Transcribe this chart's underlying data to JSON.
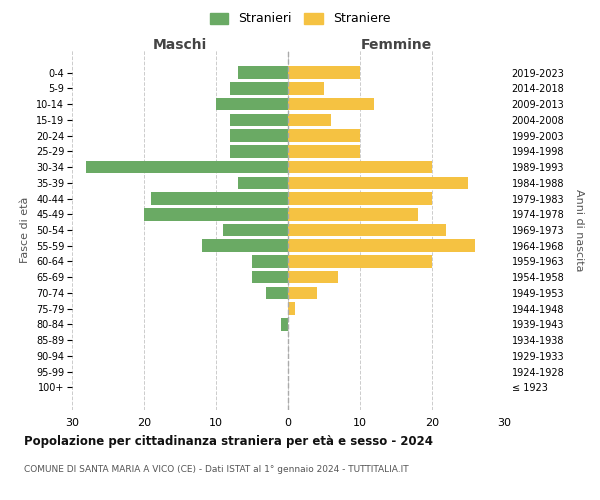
{
  "age_groups": [
    "100+",
    "95-99",
    "90-94",
    "85-89",
    "80-84",
    "75-79",
    "70-74",
    "65-69",
    "60-64",
    "55-59",
    "50-54",
    "45-49",
    "40-44",
    "35-39",
    "30-34",
    "25-29",
    "20-24",
    "15-19",
    "10-14",
    "5-9",
    "0-4"
  ],
  "birth_years": [
    "≤ 1923",
    "1924-1928",
    "1929-1933",
    "1934-1938",
    "1939-1943",
    "1944-1948",
    "1949-1953",
    "1954-1958",
    "1959-1963",
    "1964-1968",
    "1969-1973",
    "1974-1978",
    "1979-1983",
    "1984-1988",
    "1989-1993",
    "1994-1998",
    "1999-2003",
    "2004-2008",
    "2009-2013",
    "2014-2018",
    "2019-2023"
  ],
  "males": [
    0,
    0,
    0,
    0,
    1,
    0,
    3,
    5,
    5,
    12,
    9,
    20,
    19,
    7,
    28,
    8,
    8,
    8,
    10,
    8,
    7
  ],
  "females": [
    0,
    0,
    0,
    0,
    0,
    1,
    4,
    7,
    20,
    26,
    22,
    18,
    20,
    25,
    20,
    10,
    10,
    6,
    12,
    5,
    10
  ],
  "male_color": "#6aaa64",
  "female_color": "#f5c242",
  "male_label": "Stranieri",
  "female_label": "Straniere",
  "title": "Popolazione per cittadinanza straniera per età e sesso - 2024",
  "subtitle": "COMUNE DI SANTA MARIA A VICO (CE) - Dati ISTAT al 1° gennaio 2024 - TUTTITALIA.IT",
  "xlabel_left": "Maschi",
  "xlabel_right": "Femmine",
  "ylabel_left": "Fasce di età",
  "ylabel_right": "Anni di nascita",
  "xlim": 30,
  "bg_color": "#ffffff",
  "grid_color": "#cccccc",
  "bar_height": 0.8
}
